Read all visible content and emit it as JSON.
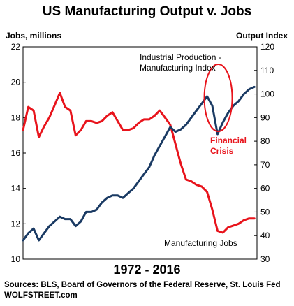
{
  "title": "US Manufacturing Output v. Jobs",
  "period": "1972  -  2016",
  "sources": {
    "line1": "Sources: BLS, Board of Governors of the Federal Reserve, St. Louis Fed",
    "line2": "WOLFSTREET.com"
  },
  "chart_data": {
    "type": "line",
    "x_range": [
      1972,
      2016.5
    ],
    "left_axis": {
      "title": "Jobs, millions",
      "ylim": [
        10,
        22
      ],
      "ticks": [
        "10",
        "12",
        "14",
        "16",
        "18",
        "20",
        "22"
      ]
    },
    "right_axis": {
      "title": "Output Index",
      "ylim": [
        30,
        120
      ],
      "ticks": [
        "30",
        "40",
        "50",
        "60",
        "70",
        "80",
        "90",
        "100",
        "110",
        "120"
      ]
    },
    "grid": false,
    "series": [
      {
        "name": "Manufacturing Jobs",
        "axis": "left",
        "color": "#e8141c",
        "x": [
          1972,
          1973,
          1974,
          1975,
          1976,
          1977,
          1978,
          1979,
          1980,
          1981,
          1982,
          1983,
          1984,
          1985,
          1986,
          1987,
          1988,
          1989,
          1990,
          1991,
          1992,
          1993,
          1994,
          1995,
          1996,
          1997,
          1998,
          1999,
          2000,
          2001,
          2002,
          2003,
          2004,
          2005,
          2006,
          2007,
          2008,
          2009,
          2010,
          2011,
          2012,
          2013,
          2014,
          2015,
          2016
        ],
        "y": [
          17.3,
          18.6,
          18.4,
          16.9,
          17.5,
          18.0,
          18.7,
          19.4,
          18.6,
          18.4,
          17.0,
          17.3,
          17.8,
          17.8,
          17.7,
          17.8,
          18.1,
          18.3,
          17.8,
          17.3,
          17.3,
          17.4,
          17.7,
          17.9,
          17.9,
          18.1,
          18.4,
          18.0,
          17.6,
          16.5,
          15.4,
          14.5,
          14.4,
          14.2,
          14.1,
          13.8,
          12.8,
          11.6,
          11.5,
          11.8,
          11.9,
          12.0,
          12.2,
          12.3,
          12.3
        ]
      },
      {
        "name": "Industrial Production - Manufacturing Index",
        "axis": "right",
        "color": "#1a3a63",
        "x": [
          1972,
          1973,
          1974,
          1975,
          1976,
          1977,
          1978,
          1979,
          1980,
          1981,
          1982,
          1983,
          1984,
          1985,
          1986,
          1987,
          1988,
          1989,
          1990,
          1991,
          1992,
          1993,
          1994,
          1995,
          1996,
          1997,
          1998,
          1999,
          2000,
          2001,
          2002,
          2003,
          2004,
          2005,
          2006,
          2007,
          2008,
          2009,
          2010,
          2011,
          2012,
          2013,
          2014,
          2015,
          2016
        ],
        "y": [
          38,
          41,
          43,
          38,
          41,
          44,
          46,
          48,
          47,
          47,
          44,
          46,
          50,
          50,
          51,
          54,
          56,
          57,
          57,
          56,
          58,
          60,
          63,
          66,
          69,
          74,
          78,
          82,
          86,
          84,
          85,
          87,
          90,
          93,
          96,
          99,
          95,
          83,
          88,
          92,
          95,
          97,
          100,
          102,
          103
        ]
      }
    ],
    "annotations": [
      {
        "text": [
          "Industrial Production -",
          "Manufacturing Index"
        ],
        "color": "#000000"
      },
      {
        "text": [
          "Financial",
          "Crisis"
        ],
        "color": "#e8141c"
      },
      {
        "text": [
          "Manufacturing Jobs"
        ],
        "color": "#000000"
      }
    ],
    "highlight": {
      "shape": "ellipse",
      "around_x": 2009,
      "color": "#e8141c"
    }
  }
}
